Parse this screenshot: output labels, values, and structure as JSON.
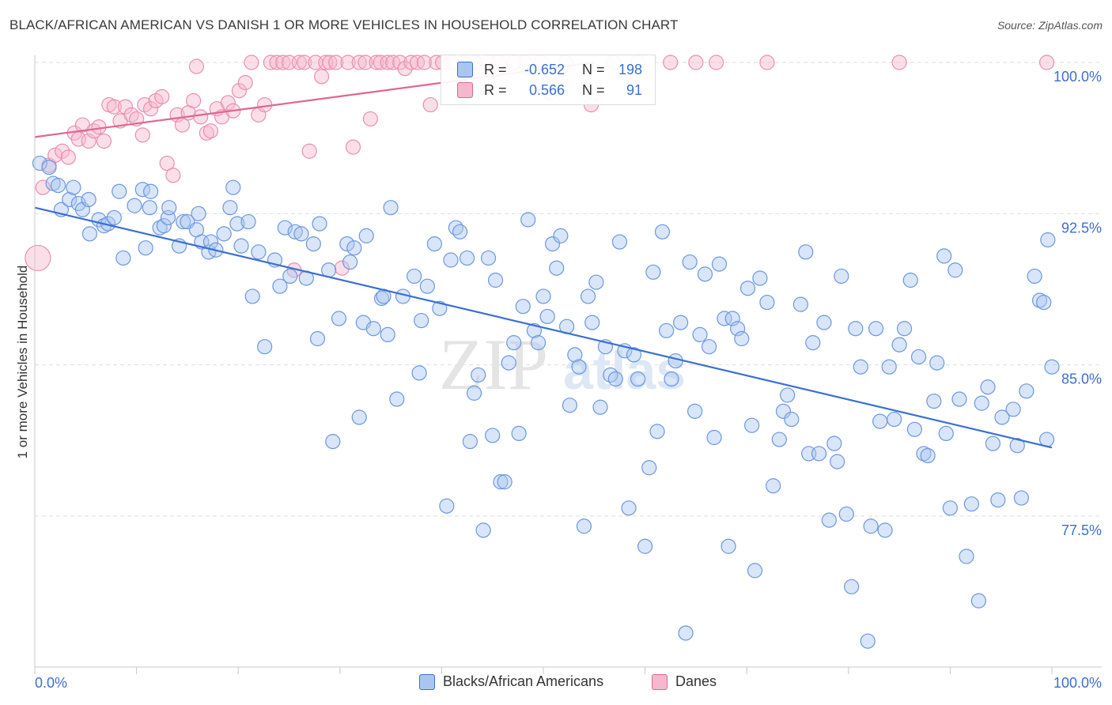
{
  "title": "BLACK/AFRICAN AMERICAN VS DANISH 1 OR MORE VEHICLES IN HOUSEHOLD CORRELATION CHART",
  "source": "Source: ZipAtlas.com",
  "watermark": {
    "zip": "ZIP",
    "atlas": "atlas"
  },
  "colors": {
    "blue": "#3a6fd1",
    "blue_fill": "#aac6f0",
    "pink": "#e06690",
    "pink_fill": "#f6b8cc",
    "axis_text": "#3a6fd1",
    "grid": "#dddddd"
  },
  "stats": [
    {
      "r_label": "R =",
      "r_value": "-0.652",
      "n_label": "N =",
      "n_value": "198"
    },
    {
      "r_label": "R =",
      "r_value": "0.566",
      "n_label": "N =",
      "n_value": "91"
    }
  ],
  "chart_data": {
    "type": "scatter",
    "title": "BLACK/AFRICAN AMERICAN VS DANISH 1 OR MORE VEHICLES IN HOUSEHOLD CORRELATION CHART",
    "xlabel": "",
    "ylabel": "1 or more Vehicles in Household",
    "xlim": [
      0,
      100
    ],
    "ylim": [
      71,
      100.8
    ],
    "x_tick_labels": [
      "0.0%",
      "100.0%"
    ],
    "y_ticks": [
      77.5,
      85.0,
      92.5,
      100.0
    ],
    "y_tick_labels": [
      "77.5%",
      "85.0%",
      "92.5%",
      "100.0%"
    ],
    "grid": true,
    "legend_position": "bottom",
    "series": [
      {
        "name": "Blacks/African Americans",
        "color": "#3a6fd1",
        "trend": {
          "x": [
            0,
            100
          ],
          "y": [
            92.8,
            80.9
          ]
        },
        "points": [
          [
            0.5,
            95.0
          ],
          [
            1.4,
            94.8
          ],
          [
            1.8,
            94.0
          ],
          [
            2.3,
            93.9
          ],
          [
            2.6,
            92.7
          ],
          [
            3.4,
            93.2
          ],
          [
            3.8,
            93.8
          ],
          [
            4.3,
            93.0
          ],
          [
            4.7,
            92.7
          ],
          [
            5.3,
            93.2
          ],
          [
            5.4,
            91.5
          ],
          [
            6.3,
            92.2
          ],
          [
            6.8,
            91.9
          ],
          [
            7.2,
            92.0
          ],
          [
            7.8,
            92.3
          ],
          [
            8.3,
            93.6
          ],
          [
            8.7,
            90.3
          ],
          [
            9.8,
            92.9
          ],
          [
            10.6,
            93.7
          ],
          [
            10.9,
            90.8
          ],
          [
            11.3,
            92.8
          ],
          [
            11.4,
            93.6
          ],
          [
            12.3,
            91.8
          ],
          [
            12.7,
            91.9
          ],
          [
            13.1,
            92.3
          ],
          [
            13.2,
            92.8
          ],
          [
            14.2,
            90.9
          ],
          [
            14.6,
            92.1
          ],
          [
            15.0,
            92.1
          ],
          [
            15.9,
            91.7
          ],
          [
            16.1,
            92.5
          ],
          [
            16.4,
            91.1
          ],
          [
            17.1,
            90.6
          ],
          [
            17.3,
            91.1
          ],
          [
            17.8,
            90.7
          ],
          [
            18.6,
            91.5
          ],
          [
            19.2,
            92.8
          ],
          [
            19.5,
            93.8
          ],
          [
            19.9,
            92.0
          ],
          [
            20.3,
            90.9
          ],
          [
            21.0,
            92.1
          ],
          [
            21.4,
            88.4
          ],
          [
            22.0,
            90.6
          ],
          [
            22.6,
            85.9
          ],
          [
            23.6,
            90.2
          ],
          [
            24.1,
            88.9
          ],
          [
            24.6,
            91.8
          ],
          [
            25.1,
            89.4
          ],
          [
            25.6,
            91.6
          ],
          [
            26.2,
            91.5
          ],
          [
            26.7,
            89.3
          ],
          [
            27.4,
            91.0
          ],
          [
            27.8,
            86.3
          ],
          [
            28.0,
            92.0
          ],
          [
            28.9,
            89.7
          ],
          [
            29.3,
            81.2
          ],
          [
            29.9,
            87.3
          ],
          [
            30.7,
            91.0
          ],
          [
            31.0,
            90.1
          ],
          [
            31.4,
            90.8
          ],
          [
            31.9,
            82.4
          ],
          [
            32.3,
            87.1
          ],
          [
            32.6,
            91.4
          ],
          [
            33.3,
            86.8
          ],
          [
            34.1,
            88.3
          ],
          [
            34.3,
            88.4
          ],
          [
            34.7,
            86.5
          ],
          [
            35.0,
            92.8
          ],
          [
            35.6,
            83.3
          ],
          [
            36.2,
            88.4
          ],
          [
            37.3,
            89.4
          ],
          [
            37.8,
            84.6
          ],
          [
            38.0,
            87.2
          ],
          [
            38.6,
            88.9
          ],
          [
            39.3,
            91.0
          ],
          [
            39.8,
            87.8
          ],
          [
            40.5,
            78.0
          ],
          [
            40.9,
            90.2
          ],
          [
            41.4,
            91.8
          ],
          [
            41.8,
            91.6
          ],
          [
            42.5,
            90.3
          ],
          [
            42.8,
            81.2
          ],
          [
            43.2,
            83.6
          ],
          [
            43.6,
            84.5
          ],
          [
            44.1,
            76.8
          ],
          [
            44.6,
            90.3
          ],
          [
            45.0,
            81.5
          ],
          [
            45.3,
            89.2
          ],
          [
            45.8,
            79.2
          ],
          [
            46.2,
            79.2
          ],
          [
            46.6,
            85.1
          ],
          [
            47.1,
            86.1
          ],
          [
            47.6,
            81.6
          ],
          [
            48.0,
            87.9
          ],
          [
            48.5,
            92.2
          ],
          [
            49.1,
            86.7
          ],
          [
            49.5,
            86.1
          ],
          [
            50.0,
            88.4
          ],
          [
            50.4,
            87.4
          ],
          [
            50.9,
            91.0
          ],
          [
            51.3,
            89.8
          ],
          [
            51.7,
            91.4
          ],
          [
            52.3,
            86.9
          ],
          [
            52.6,
            83.0
          ],
          [
            53.1,
            85.5
          ],
          [
            53.5,
            84.9
          ],
          [
            54.0,
            77.0
          ],
          [
            54.4,
            88.4
          ],
          [
            54.8,
            87.1
          ],
          [
            55.2,
            89.1
          ],
          [
            55.6,
            82.9
          ],
          [
            56.1,
            85.9
          ],
          [
            56.6,
            84.5
          ],
          [
            57.1,
            84.3
          ],
          [
            57.5,
            91.1
          ],
          [
            58.0,
            85.7
          ],
          [
            58.4,
            77.9
          ],
          [
            58.9,
            85.5
          ],
          [
            59.3,
            84.3
          ],
          [
            60.0,
            76.0
          ],
          [
            60.4,
            79.9
          ],
          [
            60.8,
            89.6
          ],
          [
            61.2,
            81.7
          ],
          [
            61.7,
            91.6
          ],
          [
            62.1,
            86.7
          ],
          [
            62.6,
            84.3
          ],
          [
            63.0,
            85.2
          ],
          [
            63.5,
            87.1
          ],
          [
            64.0,
            71.7
          ],
          [
            64.4,
            90.1
          ],
          [
            64.9,
            82.7
          ],
          [
            65.4,
            86.5
          ],
          [
            65.9,
            89.5
          ],
          [
            66.3,
            85.9
          ],
          [
            66.8,
            81.4
          ],
          [
            67.3,
            90.0
          ],
          [
            67.8,
            87.3
          ],
          [
            68.2,
            76.0
          ],
          [
            68.6,
            87.3
          ],
          [
            69.1,
            86.8
          ],
          [
            69.5,
            86.3
          ],
          [
            70.1,
            88.8
          ],
          [
            70.5,
            82.0
          ],
          [
            70.8,
            74.8
          ],
          [
            71.3,
            89.3
          ],
          [
            72.0,
            88.1
          ],
          [
            72.6,
            79.0
          ],
          [
            73.2,
            81.3
          ],
          [
            73.6,
            82.7
          ],
          [
            74.0,
            83.5
          ],
          [
            74.4,
            82.3
          ],
          [
            75.3,
            88.0
          ],
          [
            75.8,
            90.6
          ],
          [
            76.1,
            80.6
          ],
          [
            76.5,
            86.1
          ],
          [
            77.1,
            80.6
          ],
          [
            77.6,
            87.1
          ],
          [
            78.1,
            77.3
          ],
          [
            78.6,
            81.1
          ],
          [
            78.9,
            80.2
          ],
          [
            79.3,
            89.4
          ],
          [
            79.8,
            77.6
          ],
          [
            80.3,
            74.0
          ],
          [
            80.7,
            86.8
          ],
          [
            81.2,
            84.9
          ],
          [
            81.9,
            71.3
          ],
          [
            82.2,
            77.0
          ],
          [
            82.7,
            86.8
          ],
          [
            83.1,
            82.2
          ],
          [
            83.6,
            76.8
          ],
          [
            84.0,
            84.9
          ],
          [
            84.5,
            82.3
          ],
          [
            85.0,
            86.0
          ],
          [
            85.5,
            86.8
          ],
          [
            86.1,
            89.2
          ],
          [
            86.5,
            81.8
          ],
          [
            86.9,
            85.4
          ],
          [
            87.4,
            80.6
          ],
          [
            87.8,
            80.5
          ],
          [
            88.4,
            83.2
          ],
          [
            88.7,
            85.1
          ],
          [
            89.4,
            90.4
          ],
          [
            89.6,
            81.6
          ],
          [
            90.0,
            77.9
          ],
          [
            90.5,
            89.7
          ],
          [
            90.9,
            83.3
          ],
          [
            91.6,
            75.5
          ],
          [
            92.1,
            78.1
          ],
          [
            92.8,
            73.3
          ],
          [
            93.1,
            83.1
          ],
          [
            93.7,
            83.9
          ],
          [
            94.2,
            81.1
          ],
          [
            94.7,
            78.3
          ],
          [
            95.1,
            82.4
          ],
          [
            96.2,
            82.8
          ],
          [
            96.6,
            81.0
          ],
          [
            97.0,
            78.4
          ],
          [
            97.5,
            83.7
          ],
          [
            98.3,
            89.4
          ],
          [
            98.8,
            88.2
          ],
          [
            99.2,
            88.1
          ],
          [
            99.5,
            81.3
          ],
          [
            100.0,
            84.9
          ],
          [
            99.6,
            91.2
          ]
        ]
      },
      {
        "name": "Danes",
        "color": "#e06690",
        "trend": {
          "x": [
            0,
            55
          ],
          "y": [
            96.3,
            100.0
          ]
        },
        "points": [
          [
            0.3,
            90.3
          ],
          [
            0.8,
            93.8
          ],
          [
            1.4,
            94.9
          ],
          [
            2.0,
            95.4
          ],
          [
            2.7,
            95.6
          ],
          [
            3.3,
            95.3
          ],
          [
            3.9,
            96.5
          ],
          [
            4.3,
            96.2
          ],
          [
            4.7,
            96.9
          ],
          [
            5.3,
            96.1
          ],
          [
            5.8,
            96.6
          ],
          [
            6.3,
            96.8
          ],
          [
            6.8,
            96.1
          ],
          [
            7.3,
            97.9
          ],
          [
            7.8,
            97.8
          ],
          [
            8.4,
            97.1
          ],
          [
            8.9,
            97.8
          ],
          [
            9.5,
            97.4
          ],
          [
            10.0,
            97.2
          ],
          [
            10.6,
            96.4
          ],
          [
            10.8,
            97.9
          ],
          [
            11.4,
            97.7
          ],
          [
            11.9,
            98.1
          ],
          [
            12.5,
            98.3
          ],
          [
            13.0,
            95.0
          ],
          [
            13.6,
            94.4
          ],
          [
            14.0,
            97.4
          ],
          [
            14.5,
            96.9
          ],
          [
            15.1,
            97.5
          ],
          [
            15.6,
            98.1
          ],
          [
            15.9,
            99.8
          ],
          [
            16.3,
            97.3
          ],
          [
            16.9,
            96.5
          ],
          [
            17.3,
            96.6
          ],
          [
            17.9,
            97.7
          ],
          [
            18.4,
            97.3
          ],
          [
            19.0,
            98.0
          ],
          [
            19.5,
            97.6
          ],
          [
            20.1,
            98.6
          ],
          [
            20.7,
            99.0
          ],
          [
            21.3,
            100.0
          ],
          [
            22.0,
            97.4
          ],
          [
            22.6,
            97.9
          ],
          [
            23.2,
            100.0
          ],
          [
            23.8,
            100.0
          ],
          [
            24.4,
            100.0
          ],
          [
            25.0,
            100.0
          ],
          [
            25.5,
            89.7
          ],
          [
            26.0,
            100.0
          ],
          [
            26.5,
            100.0
          ],
          [
            27.0,
            95.6
          ],
          [
            27.6,
            100.0
          ],
          [
            28.2,
            99.3
          ],
          [
            28.6,
            100.0
          ],
          [
            29.0,
            100.0
          ],
          [
            29.6,
            100.0
          ],
          [
            30.2,
            89.8
          ],
          [
            30.8,
            100.0
          ],
          [
            31.3,
            95.8
          ],
          [
            31.9,
            100.0
          ],
          [
            32.5,
            100.0
          ],
          [
            33.0,
            97.2
          ],
          [
            33.6,
            100.0
          ],
          [
            34.0,
            100.0
          ],
          [
            34.7,
            100.0
          ],
          [
            35.2,
            100.0
          ],
          [
            35.9,
            100.0
          ],
          [
            36.4,
            99.7
          ],
          [
            37.0,
            100.0
          ],
          [
            37.6,
            100.0
          ],
          [
            38.3,
            100.0
          ],
          [
            38.9,
            97.9
          ],
          [
            39.5,
            100.0
          ],
          [
            40.1,
            100.0
          ],
          [
            41.0,
            100.0
          ],
          [
            42.2,
            100.0
          ],
          [
            43.3,
            100.0
          ],
          [
            44.6,
            100.0
          ],
          [
            45.6,
            100.0
          ],
          [
            47.1,
            100.0
          ],
          [
            48.2,
            100.0
          ],
          [
            49.8,
            100.0
          ],
          [
            50.7,
            98.5
          ],
          [
            52.2,
            100.0
          ],
          [
            54.7,
            97.9
          ],
          [
            56.9,
            100.0
          ],
          [
            59.3,
            100.0
          ],
          [
            62.5,
            100.0
          ],
          [
            65.0,
            100.0
          ],
          [
            67.0,
            100.0
          ],
          [
            72.0,
            100.0
          ],
          [
            85.0,
            100.0
          ],
          [
            99.5,
            100.0
          ]
        ]
      }
    ]
  }
}
